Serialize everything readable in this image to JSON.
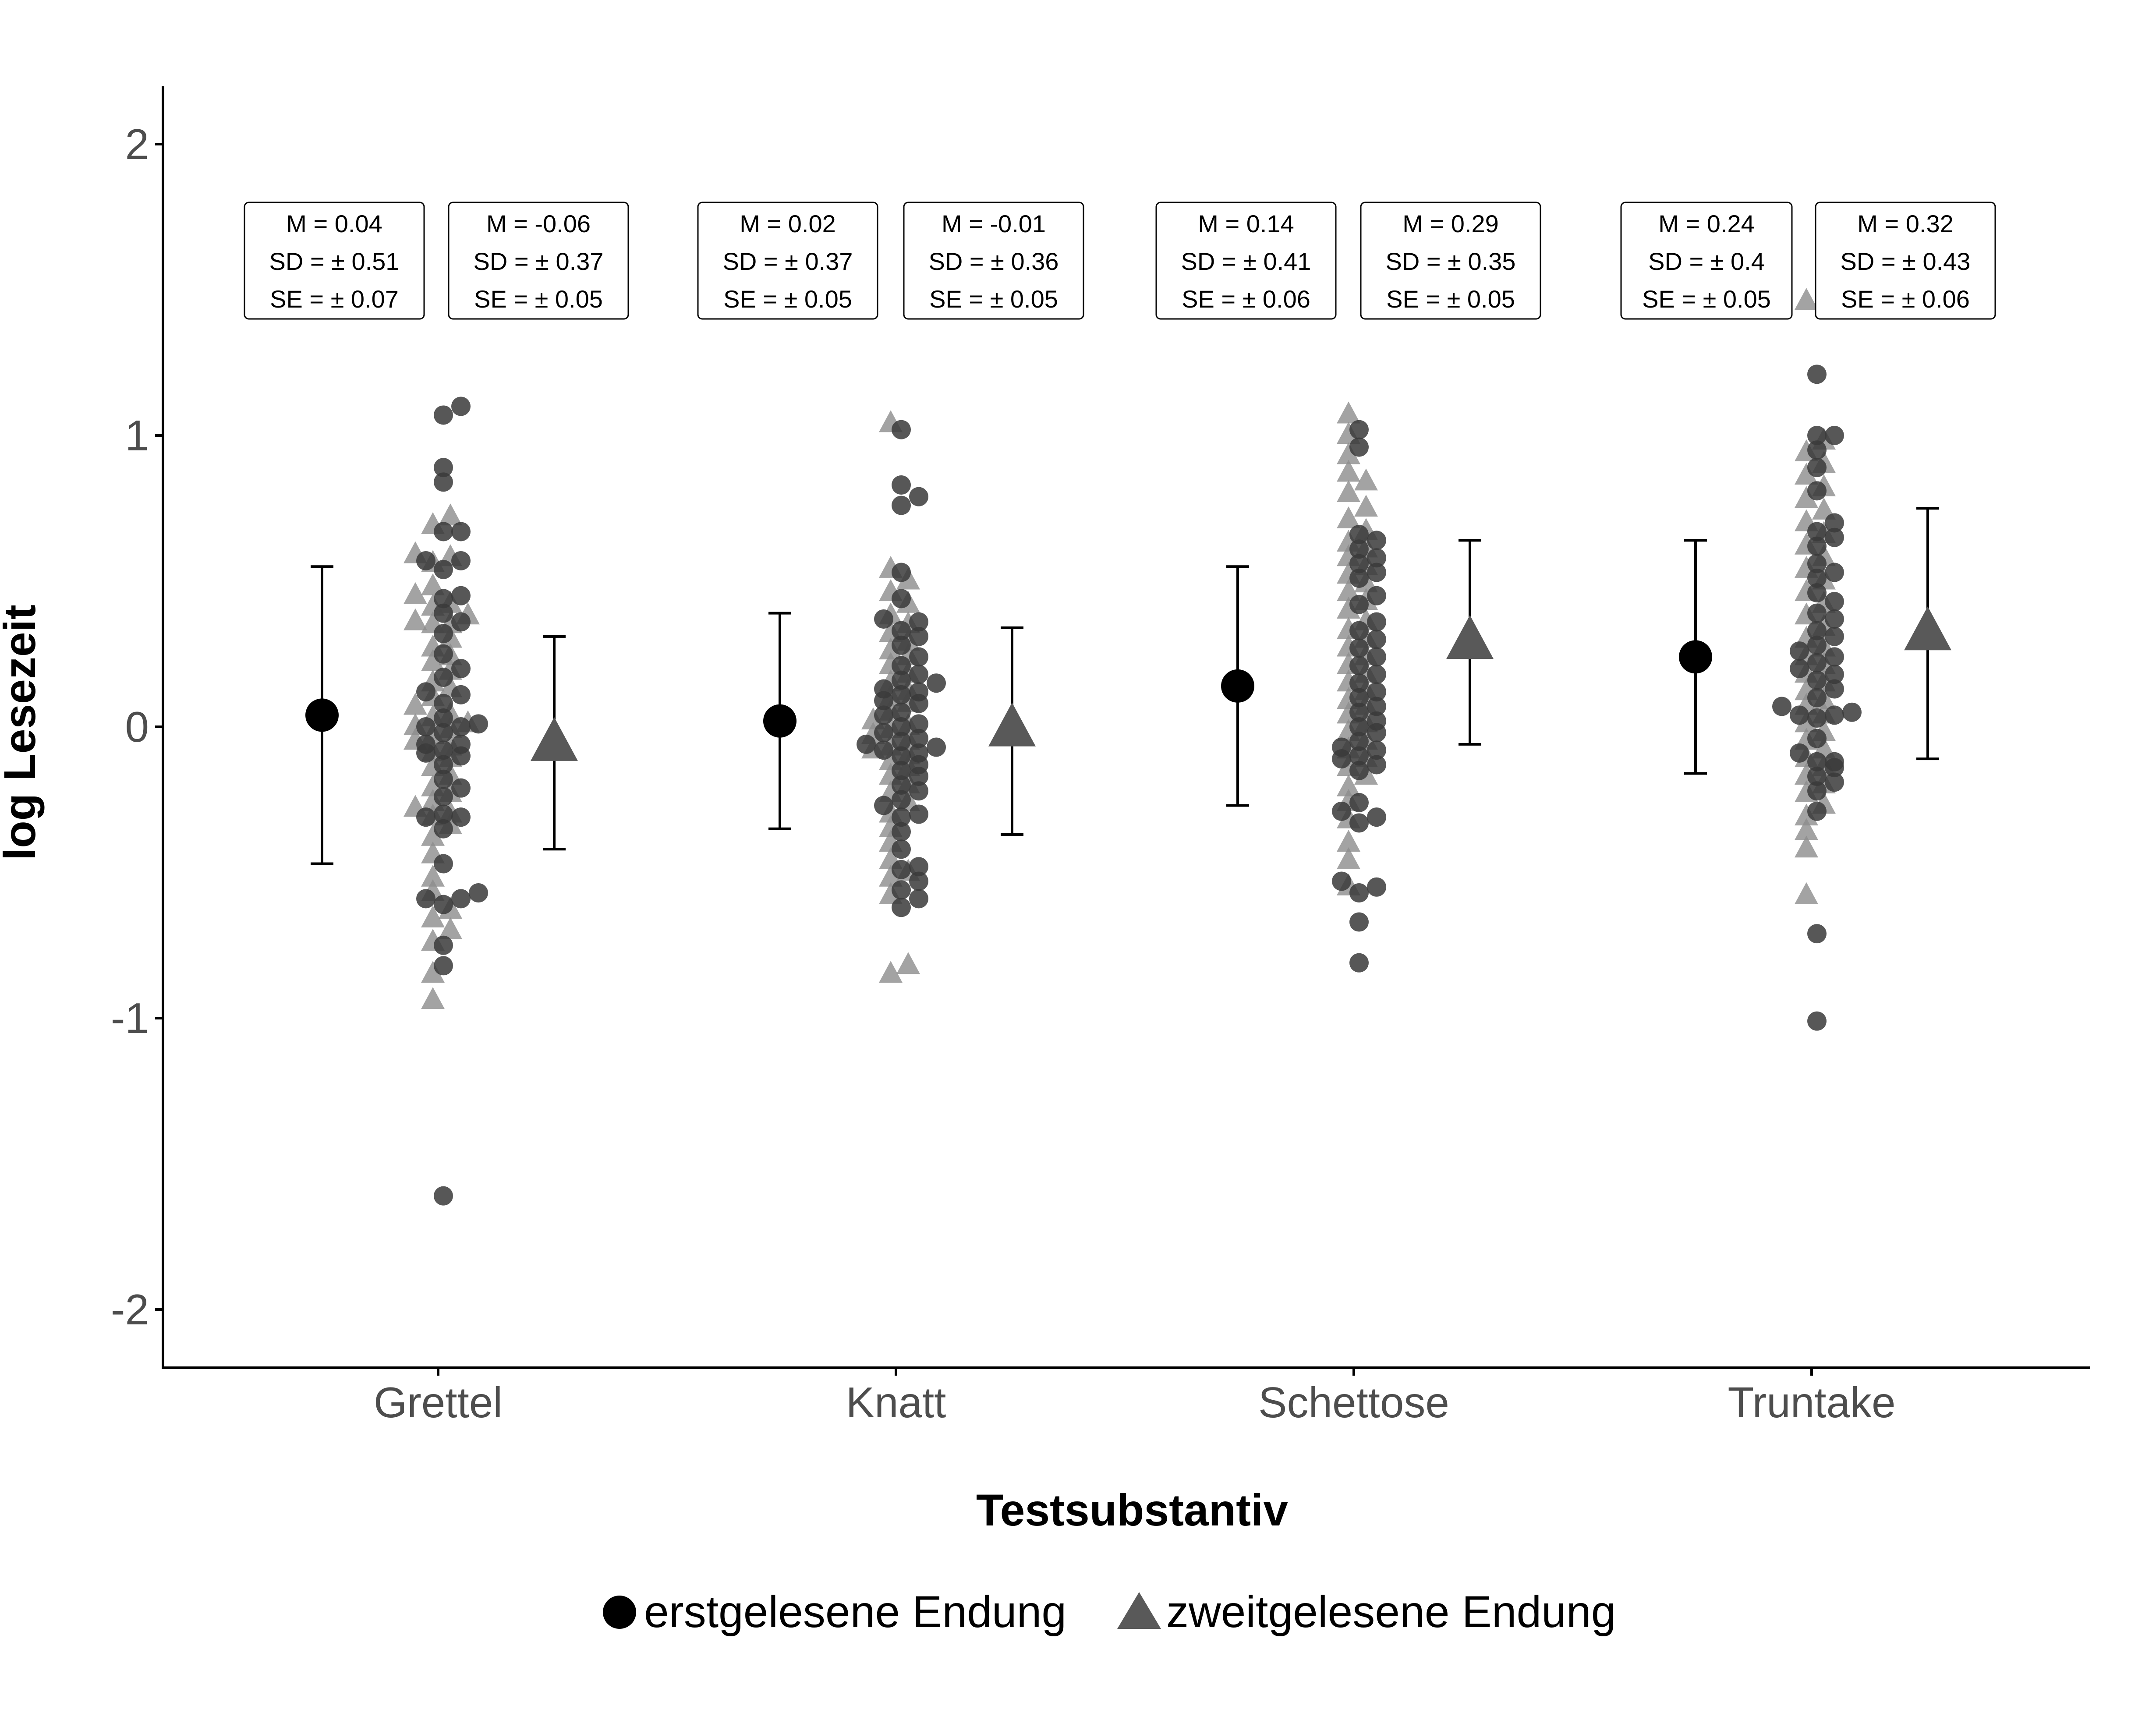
{
  "chart_data": {
    "type": "scatter",
    "xlabel": "Testsubstantiv",
    "ylabel": "log Lesezeit",
    "ylim": [
      -2.2,
      2.2
    ],
    "yticks": [
      -2,
      -1,
      0,
      1,
      2
    ],
    "ytick_labels": [
      "-2",
      "-1",
      "0",
      "1",
      "2"
    ],
    "grid": false,
    "legend_position": "bottom",
    "categories": [
      "Grettel",
      "Knatt",
      "Schettose",
      "Truntake"
    ],
    "series": [
      {
        "name": "erstgelesene Endung",
        "marker": "circle",
        "color": "#000000",
        "points_color": "#3a3a3a",
        "summary": [
          {
            "mean": 0.04,
            "lower": -0.47,
            "upper": 0.55
          },
          {
            "mean": 0.02,
            "lower": -0.35,
            "upper": 0.39
          },
          {
            "mean": 0.14,
            "lower": -0.27,
            "upper": 0.55
          },
          {
            "mean": 0.24,
            "lower": -0.16,
            "upper": 0.64
          }
        ],
        "points": [
          [
            1.1,
            1.07,
            0.89,
            0.84,
            0.67,
            0.67,
            0.57,
            0.57,
            0.54,
            0.45,
            0.44,
            0.39,
            0.36,
            0.32,
            0.25,
            0.2,
            0.17,
            0.12,
            0.11,
            0.08,
            0.03,
            0.01,
            0.0,
            0.0,
            -0.02,
            -0.06,
            -0.06,
            -0.08,
            -0.09,
            -0.1,
            -0.13,
            -0.18,
            -0.21,
            -0.24,
            -0.3,
            -0.31,
            -0.31,
            -0.35,
            -0.47,
            -0.57,
            -0.59,
            -0.59,
            -0.61,
            -0.75,
            -0.82,
            -1.61
          ],
          [
            1.02,
            0.83,
            0.79,
            0.76,
            0.53,
            0.44,
            0.37,
            0.36,
            0.33,
            0.31,
            0.28,
            0.24,
            0.21,
            0.18,
            0.16,
            0.15,
            0.13,
            0.12,
            0.11,
            0.09,
            0.08,
            0.05,
            0.04,
            0.01,
            0.0,
            -0.02,
            -0.04,
            -0.05,
            -0.06,
            -0.07,
            -0.08,
            -0.09,
            -0.1,
            -0.13,
            -0.15,
            -0.17,
            -0.2,
            -0.22,
            -0.25,
            -0.27,
            -0.3,
            -0.31,
            -0.36,
            -0.42,
            -0.48,
            -0.49,
            -0.53,
            -0.56,
            -0.59,
            -0.62
          ],
          [
            1.02,
            0.96,
            0.66,
            0.64,
            0.61,
            0.58,
            0.56,
            0.53,
            0.51,
            0.45,
            0.42,
            0.36,
            0.33,
            0.3,
            0.27,
            0.24,
            0.21,
            0.18,
            0.15,
            0.12,
            0.1,
            0.07,
            0.05,
            0.02,
            0.0,
            -0.02,
            -0.05,
            -0.07,
            -0.08,
            -0.1,
            -0.11,
            -0.13,
            -0.15,
            -0.26,
            -0.29,
            -0.31,
            -0.33,
            -0.53,
            -0.55,
            -0.57,
            -0.67,
            -0.81
          ],
          [
            1.21,
            1.0,
            1.0,
            0.95,
            0.89,
            0.81,
            0.7,
            0.67,
            0.65,
            0.62,
            0.56,
            0.53,
            0.51,
            0.46,
            0.43,
            0.39,
            0.37,
            0.33,
            0.31,
            0.28,
            0.26,
            0.24,
            0.22,
            0.2,
            0.18,
            0.16,
            0.13,
            0.1,
            0.07,
            0.05,
            0.04,
            0.04,
            0.03,
            -0.04,
            -0.09,
            -0.12,
            -0.12,
            -0.14,
            -0.17,
            -0.19,
            -0.22,
            -0.29,
            -0.71,
            -1.01
          ]
        ]
      },
      {
        "name": "zweitgelesene Endung",
        "marker": "triangle",
        "color": "#595959",
        "points_color": "#8c8c8c",
        "summary": [
          {
            "mean": -0.06,
            "lower": -0.42,
            "upper": 0.31
          },
          {
            "mean": -0.01,
            "lower": -0.37,
            "upper": 0.34
          },
          {
            "mean": 0.29,
            "lower": -0.06,
            "upper": 0.64
          },
          {
            "mean": 0.32,
            "lower": -0.11,
            "upper": 0.75
          }
        ],
        "points": [
          [
            0.72,
            0.69,
            0.59,
            0.58,
            0.56,
            0.48,
            0.45,
            0.42,
            0.41,
            0.38,
            0.36,
            0.35,
            0.35,
            0.3,
            0.27,
            0.24,
            0.22,
            0.19,
            0.15,
            0.13,
            0.1,
            0.07,
            0.04,
            0.03,
            0.01,
            0.0,
            -0.01,
            -0.03,
            -0.05,
            -0.07,
            -0.09,
            -0.11,
            -0.14,
            -0.17,
            -0.21,
            -0.23,
            -0.26,
            -0.28,
            -0.3,
            -0.31,
            -0.34,
            -0.38,
            -0.44,
            -0.52,
            -0.57,
            -0.63,
            -0.66,
            -0.7,
            -0.74,
            -0.85,
            -0.94
          ],
          [
            1.04,
            0.54,
            0.5,
            0.46,
            0.42,
            0.38,
            0.35,
            0.32,
            0.29,
            0.26,
            0.24,
            0.21,
            0.18,
            0.15,
            0.12,
            0.1,
            0.08,
            0.05,
            0.02,
            0.0,
            -0.01,
            -0.03,
            -0.05,
            -0.07,
            -0.08,
            -0.1,
            -0.12,
            -0.14,
            -0.17,
            -0.2,
            -0.23,
            -0.26,
            -0.3,
            -0.35,
            -0.4,
            -0.46,
            -0.5,
            -0.52,
            -0.58,
            -0.82,
            -0.85
          ],
          [
            1.07,
            1.0,
            0.93,
            0.87,
            0.84,
            0.8,
            0.75,
            0.71,
            0.67,
            0.63,
            0.61,
            0.58,
            0.55,
            0.52,
            0.49,
            0.46,
            0.43,
            0.4,
            0.36,
            0.33,
            0.3,
            0.27,
            0.24,
            0.21,
            0.18,
            0.15,
            0.12,
            0.09,
            0.07,
            0.04,
            0.01,
            -0.02,
            -0.05,
            -0.08,
            -0.11,
            -0.14,
            -0.17,
            -0.21,
            -0.26,
            -0.32,
            -0.4,
            -0.46,
            -0.55
          ],
          [
            1.46,
            0.98,
            0.94,
            0.9,
            0.86,
            0.82,
            0.78,
            0.74,
            0.7,
            0.66,
            0.62,
            0.58,
            0.54,
            0.5,
            0.46,
            0.42,
            0.38,
            0.34,
            0.3,
            0.27,
            0.24,
            0.21,
            0.18,
            0.15,
            0.12,
            0.09,
            0.07,
            0.04,
            0.01,
            -0.02,
            -0.05,
            -0.08,
            -0.11,
            -0.14,
            -0.17,
            -0.2,
            -0.23,
            -0.27,
            -0.31,
            -0.36,
            -0.42,
            -0.58
          ]
        ]
      }
    ],
    "annotations": [
      {
        "category": "Grettel",
        "series": "erstgelesene Endung",
        "lines": [
          "M = 0.04",
          "SD = ±  0.51",
          "SE = ±  0.07"
        ]
      },
      {
        "category": "Grettel",
        "series": "zweitgelesene Endung",
        "lines": [
          "M = -0.06",
          "SD = ±  0.37",
          "SE = ±  0.05"
        ]
      },
      {
        "category": "Knatt",
        "series": "erstgelesene Endung",
        "lines": [
          "M = 0.02",
          "SD = ±  0.37",
          "SE = ±  0.05"
        ]
      },
      {
        "category": "Knatt",
        "series": "zweitgelesene Endung",
        "lines": [
          "M = -0.01",
          "SD = ±  0.36",
          "SE = ±  0.05"
        ]
      },
      {
        "category": "Schettose",
        "series": "erstgelesene Endung",
        "lines": [
          "M = 0.14",
          "SD = ±  0.41",
          "SE = ±  0.06"
        ]
      },
      {
        "category": "Schettose",
        "series": "zweitgelesene Endung",
        "lines": [
          "M = 0.29",
          "SD = ±  0.35",
          "SE = ±  0.05"
        ]
      },
      {
        "category": "Truntake",
        "series": "erstgelesene Endung",
        "lines": [
          "M = 0.24",
          "SD = ±  0.4",
          "SE = ±  0.05"
        ]
      },
      {
        "category": "Truntake",
        "series": "zweitgelesene Endung",
        "lines": [
          "M = 0.32",
          "SD = ±  0.43",
          "SE = ±  0.06"
        ]
      }
    ]
  }
}
